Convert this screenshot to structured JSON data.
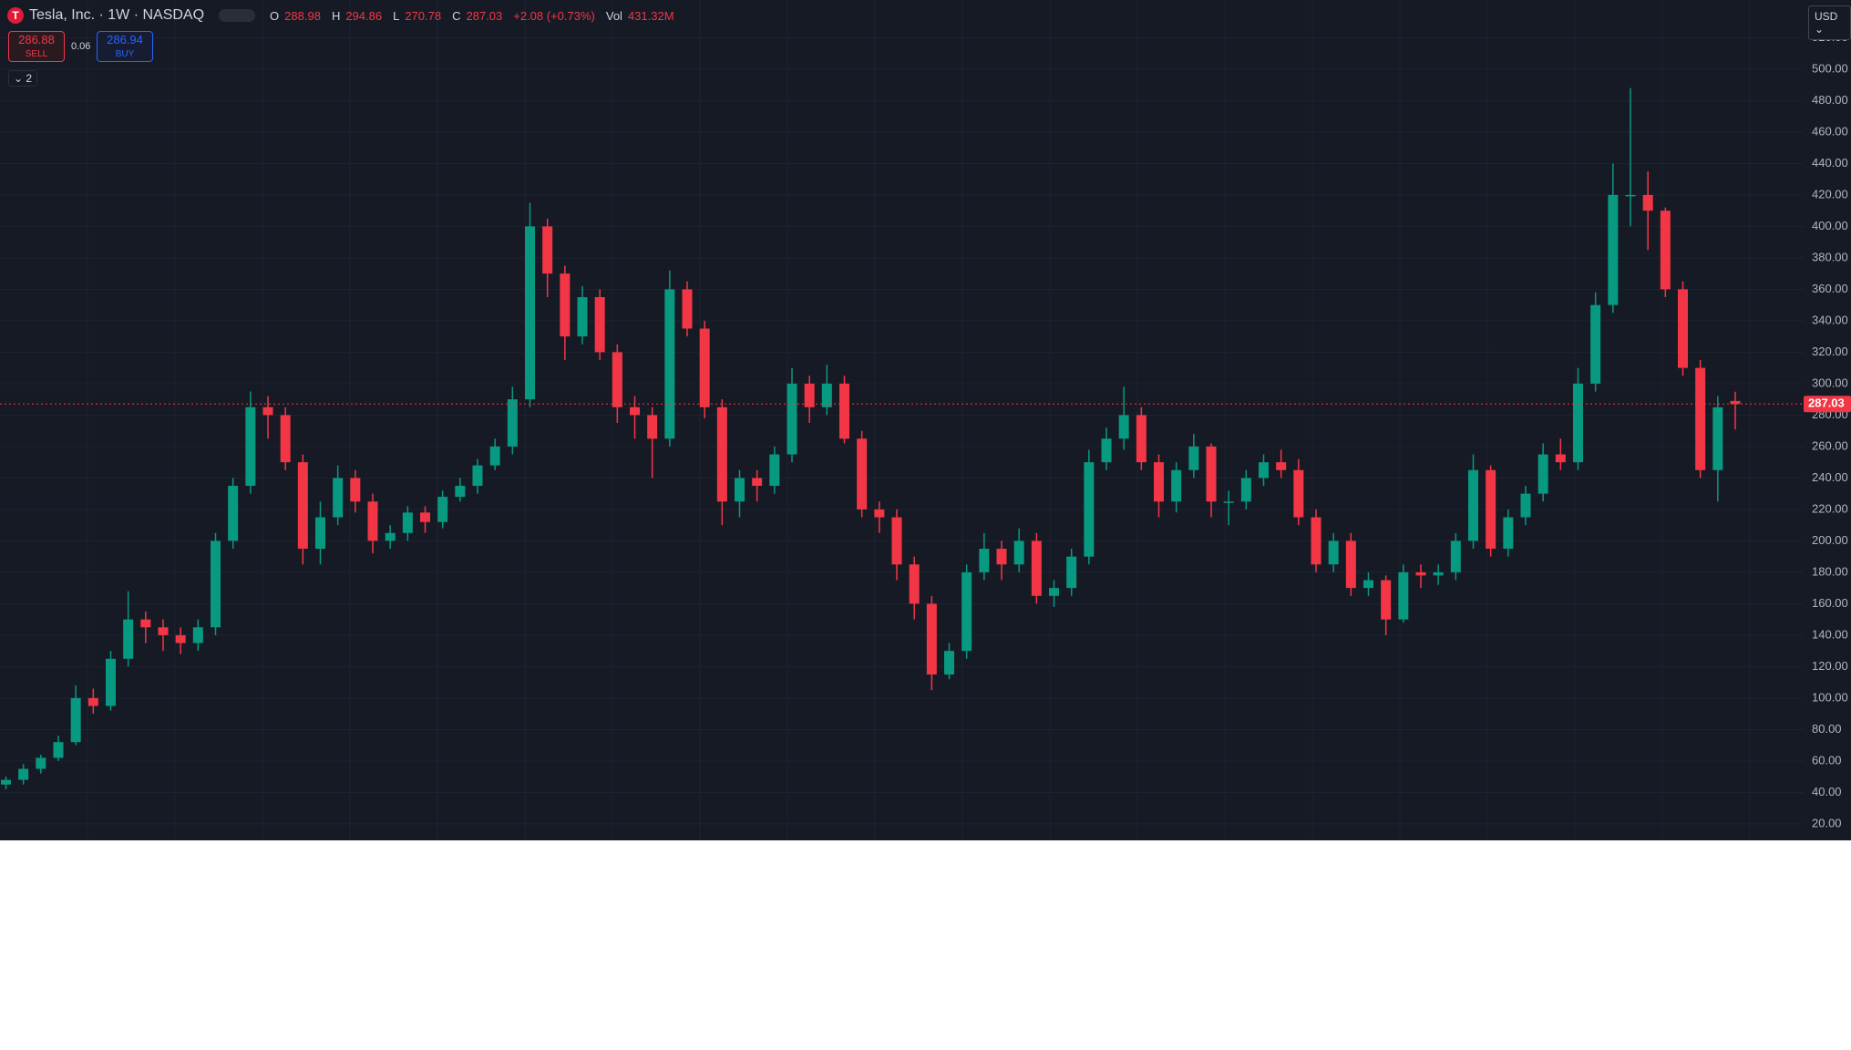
{
  "header": {
    "title": "Tesla, Inc. · 1W · NASDAQ",
    "o": "O",
    "h": "H",
    "l": "L",
    "c": "C",
    "change": "+2.08 (+0.73%)",
    "vol_label": "Vol",
    "vol": "431.32M",
    "sell_price": "286.88",
    "sell": "SELL",
    "spread": "0.06",
    "buy_price": "286.94",
    "buy": "BUY",
    "legend_count": "2",
    "currency": "USD"
  },
  "chart_data": {
    "type": "candlestick",
    "up_color": "#089981",
    "down_color": "#f23645",
    "open": [
      45,
      48,
      55,
      62,
      72,
      100,
      95,
      125,
      150,
      145,
      140,
      135,
      145,
      200,
      235,
      285,
      280,
      250,
      195,
      215,
      240,
      225,
      200,
      205,
      218,
      212,
      228,
      235,
      248,
      260,
      290,
      400,
      370,
      330,
      355,
      320,
      285,
      280,
      265,
      360,
      335,
      285,
      225,
      240,
      235,
      255,
      300,
      285,
      300,
      265,
      220,
      215,
      185,
      160,
      115,
      130,
      180,
      195,
      185,
      200,
      165,
      170,
      190,
      250,
      265,
      280,
      250,
      225,
      245,
      260,
      225,
      225,
      240,
      250,
      245,
      215,
      185,
      200,
      170,
      175,
      150,
      180,
      178,
      180,
      200,
      245,
      195,
      215,
      230,
      255,
      250,
      300,
      350,
      420,
      420,
      410,
      360,
      310,
      245,
      288.98
    ],
    "high": [
      50,
      58,
      64,
      76,
      108,
      106,
      130,
      168,
      155,
      150,
      145,
      150,
      205,
      240,
      295,
      292,
      285,
      255,
      225,
      248,
      245,
      230,
      210,
      222,
      222,
      232,
      240,
      252,
      265,
      298,
      415,
      405,
      375,
      362,
      360,
      325,
      292,
      285,
      372,
      365,
      340,
      290,
      245,
      245,
      260,
      310,
      305,
      312,
      305,
      270,
      225,
      220,
      190,
      165,
      135,
      185,
      205,
      200,
      208,
      205,
      175,
      195,
      258,
      272,
      298,
      285,
      255,
      250,
      268,
      262,
      232,
      245,
      255,
      258,
      252,
      220,
      205,
      205,
      180,
      178,
      185,
      185,
      185,
      205,
      255,
      248,
      220,
      235,
      262,
      265,
      310,
      358,
      440,
      488,
      435,
      412,
      365,
      315,
      292,
      294.86
    ],
    "low": [
      42,
      45,
      52,
      60,
      70,
      90,
      92,
      120,
      135,
      130,
      128,
      130,
      140,
      195,
      230,
      265,
      245,
      185,
      185,
      210,
      218,
      192,
      195,
      200,
      205,
      208,
      225,
      230,
      245,
      255,
      285,
      355,
      315,
      325,
      315,
      275,
      265,
      240,
      260,
      330,
      278,
      210,
      215,
      225,
      230,
      250,
      275,
      280,
      262,
      215,
      205,
      175,
      150,
      105,
      112,
      125,
      175,
      175,
      180,
      160,
      158,
      165,
      185,
      245,
      258,
      245,
      215,
      218,
      240,
      215,
      210,
      220,
      235,
      240,
      210,
      180,
      180,
      165,
      165,
      140,
      148,
      170,
      172,
      175,
      195,
      190,
      190,
      210,
      225,
      245,
      245,
      295,
      345,
      400,
      385,
      355,
      305,
      240,
      225,
      270.78
    ],
    "close": [
      48,
      55,
      62,
      72,
      100,
      95,
      125,
      150,
      145,
      140,
      135,
      145,
      200,
      235,
      285,
      280,
      250,
      195,
      215,
      240,
      225,
      200,
      205,
      218,
      212,
      228,
      235,
      248,
      260,
      290,
      400,
      370,
      330,
      355,
      320,
      285,
      280,
      265,
      360,
      335,
      285,
      225,
      240,
      235,
      255,
      300,
      285,
      300,
      265,
      220,
      215,
      185,
      160,
      115,
      130,
      180,
      195,
      185,
      200,
      165,
      170,
      190,
      250,
      265,
      280,
      250,
      225,
      245,
      260,
      225,
      225,
      240,
      250,
      245,
      215,
      185,
      200,
      170,
      175,
      150,
      180,
      178,
      180,
      200,
      245,
      195,
      215,
      230,
      255,
      250,
      300,
      350,
      420,
      420,
      410,
      360,
      310,
      245,
      284.95,
      287.03
    ],
    "ylim": [
      9.5,
      544
    ],
    "yticks": [
      {
        "value": 20,
        "label": "20.00"
      },
      {
        "value": 40,
        "label": "40.00"
      },
      {
        "value": 60,
        "label": "60.00"
      },
      {
        "value": 80,
        "label": "80.00"
      },
      {
        "value": 100,
        "label": "100.00"
      },
      {
        "value": 120,
        "label": "120.00"
      },
      {
        "value": 140,
        "label": "140.00"
      },
      {
        "value": 160,
        "label": "160.00"
      },
      {
        "value": 180,
        "label": "180.00"
      },
      {
        "value": 200,
        "label": "200.00"
      },
      {
        "value": 220,
        "label": "220.00"
      },
      {
        "value": 240,
        "label": "240.00"
      },
      {
        "value": 260,
        "label": "260.00"
      },
      {
        "value": 280,
        "label": "280.00"
      },
      {
        "value": 300,
        "label": "300.00"
      },
      {
        "value": 320,
        "label": "320.00"
      },
      {
        "value": 340,
        "label": "340.00"
      },
      {
        "value": 360,
        "label": "360.00"
      },
      {
        "value": 380,
        "label": "380.00"
      },
      {
        "value": 400,
        "label": "400.00"
      },
      {
        "value": 420,
        "label": "420.00"
      },
      {
        "value": 440,
        "label": "440.00"
      },
      {
        "value": 460,
        "label": "460.00"
      },
      {
        "value": 480,
        "label": "480.00"
      },
      {
        "value": 500,
        "label": "500.00"
      },
      {
        "value": 520,
        "label": "520.00"
      }
    ],
    "grid": true
  }
}
